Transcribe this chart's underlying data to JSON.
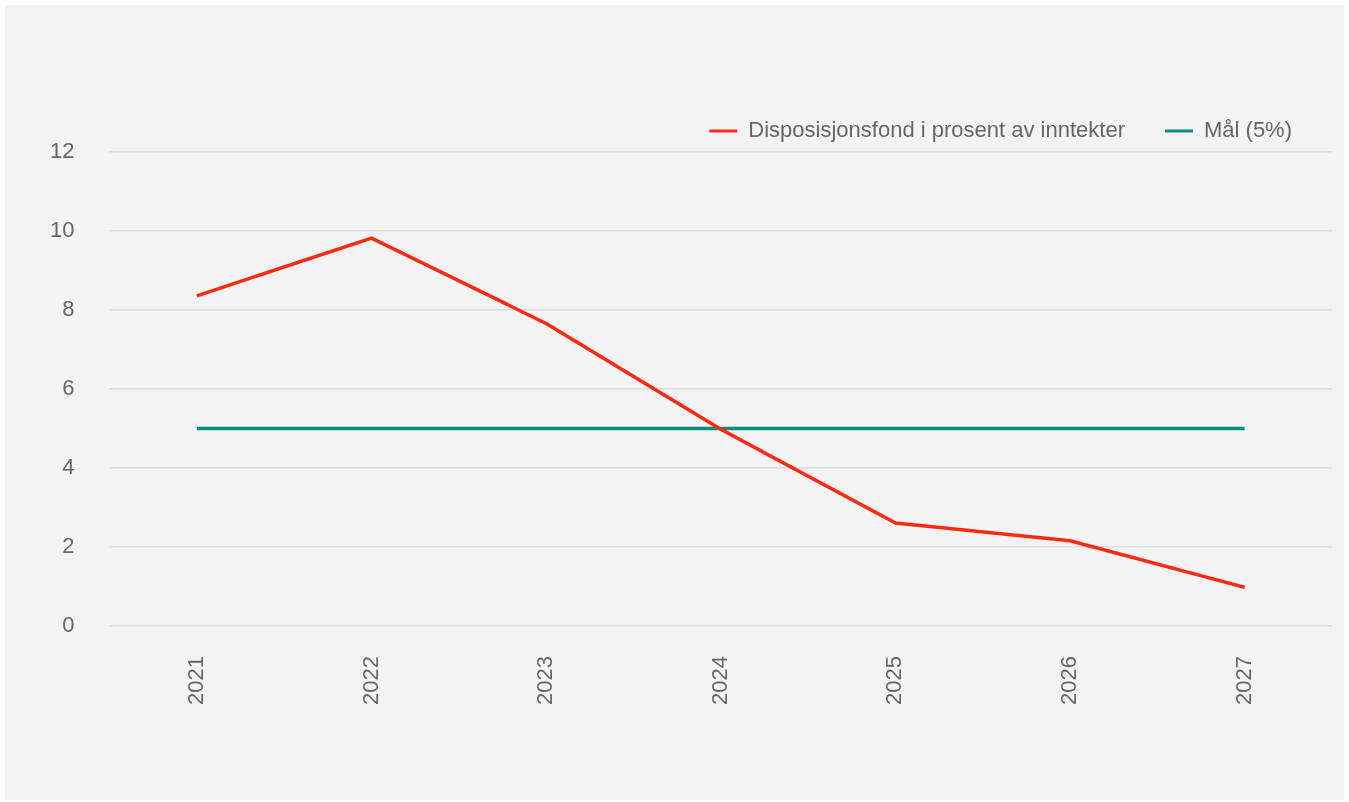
{
  "chart_data": {
    "type": "line",
    "categories": [
      "2021",
      "2022",
      "2023",
      "2024",
      "2025",
      "2026",
      "2027"
    ],
    "series": [
      {
        "name": "Disposisjonsfond i prosent av inntekter",
        "color": "#ff2a12",
        "values": [
          8.36,
          9.82,
          7.66,
          4.98,
          2.61,
          2.16,
          0.98
        ]
      },
      {
        "name": "Mål (5%)",
        "color": "#0f8c7c",
        "values": [
          5,
          5,
          5,
          5,
          5,
          5,
          5
        ]
      }
    ],
    "ylim": [
      0,
      12
    ],
    "yticks": [
      0,
      2,
      4,
      6,
      8,
      10,
      12
    ],
    "grid": "y",
    "legend": "top right",
    "marker": "none",
    "line_style": "solid"
  }
}
